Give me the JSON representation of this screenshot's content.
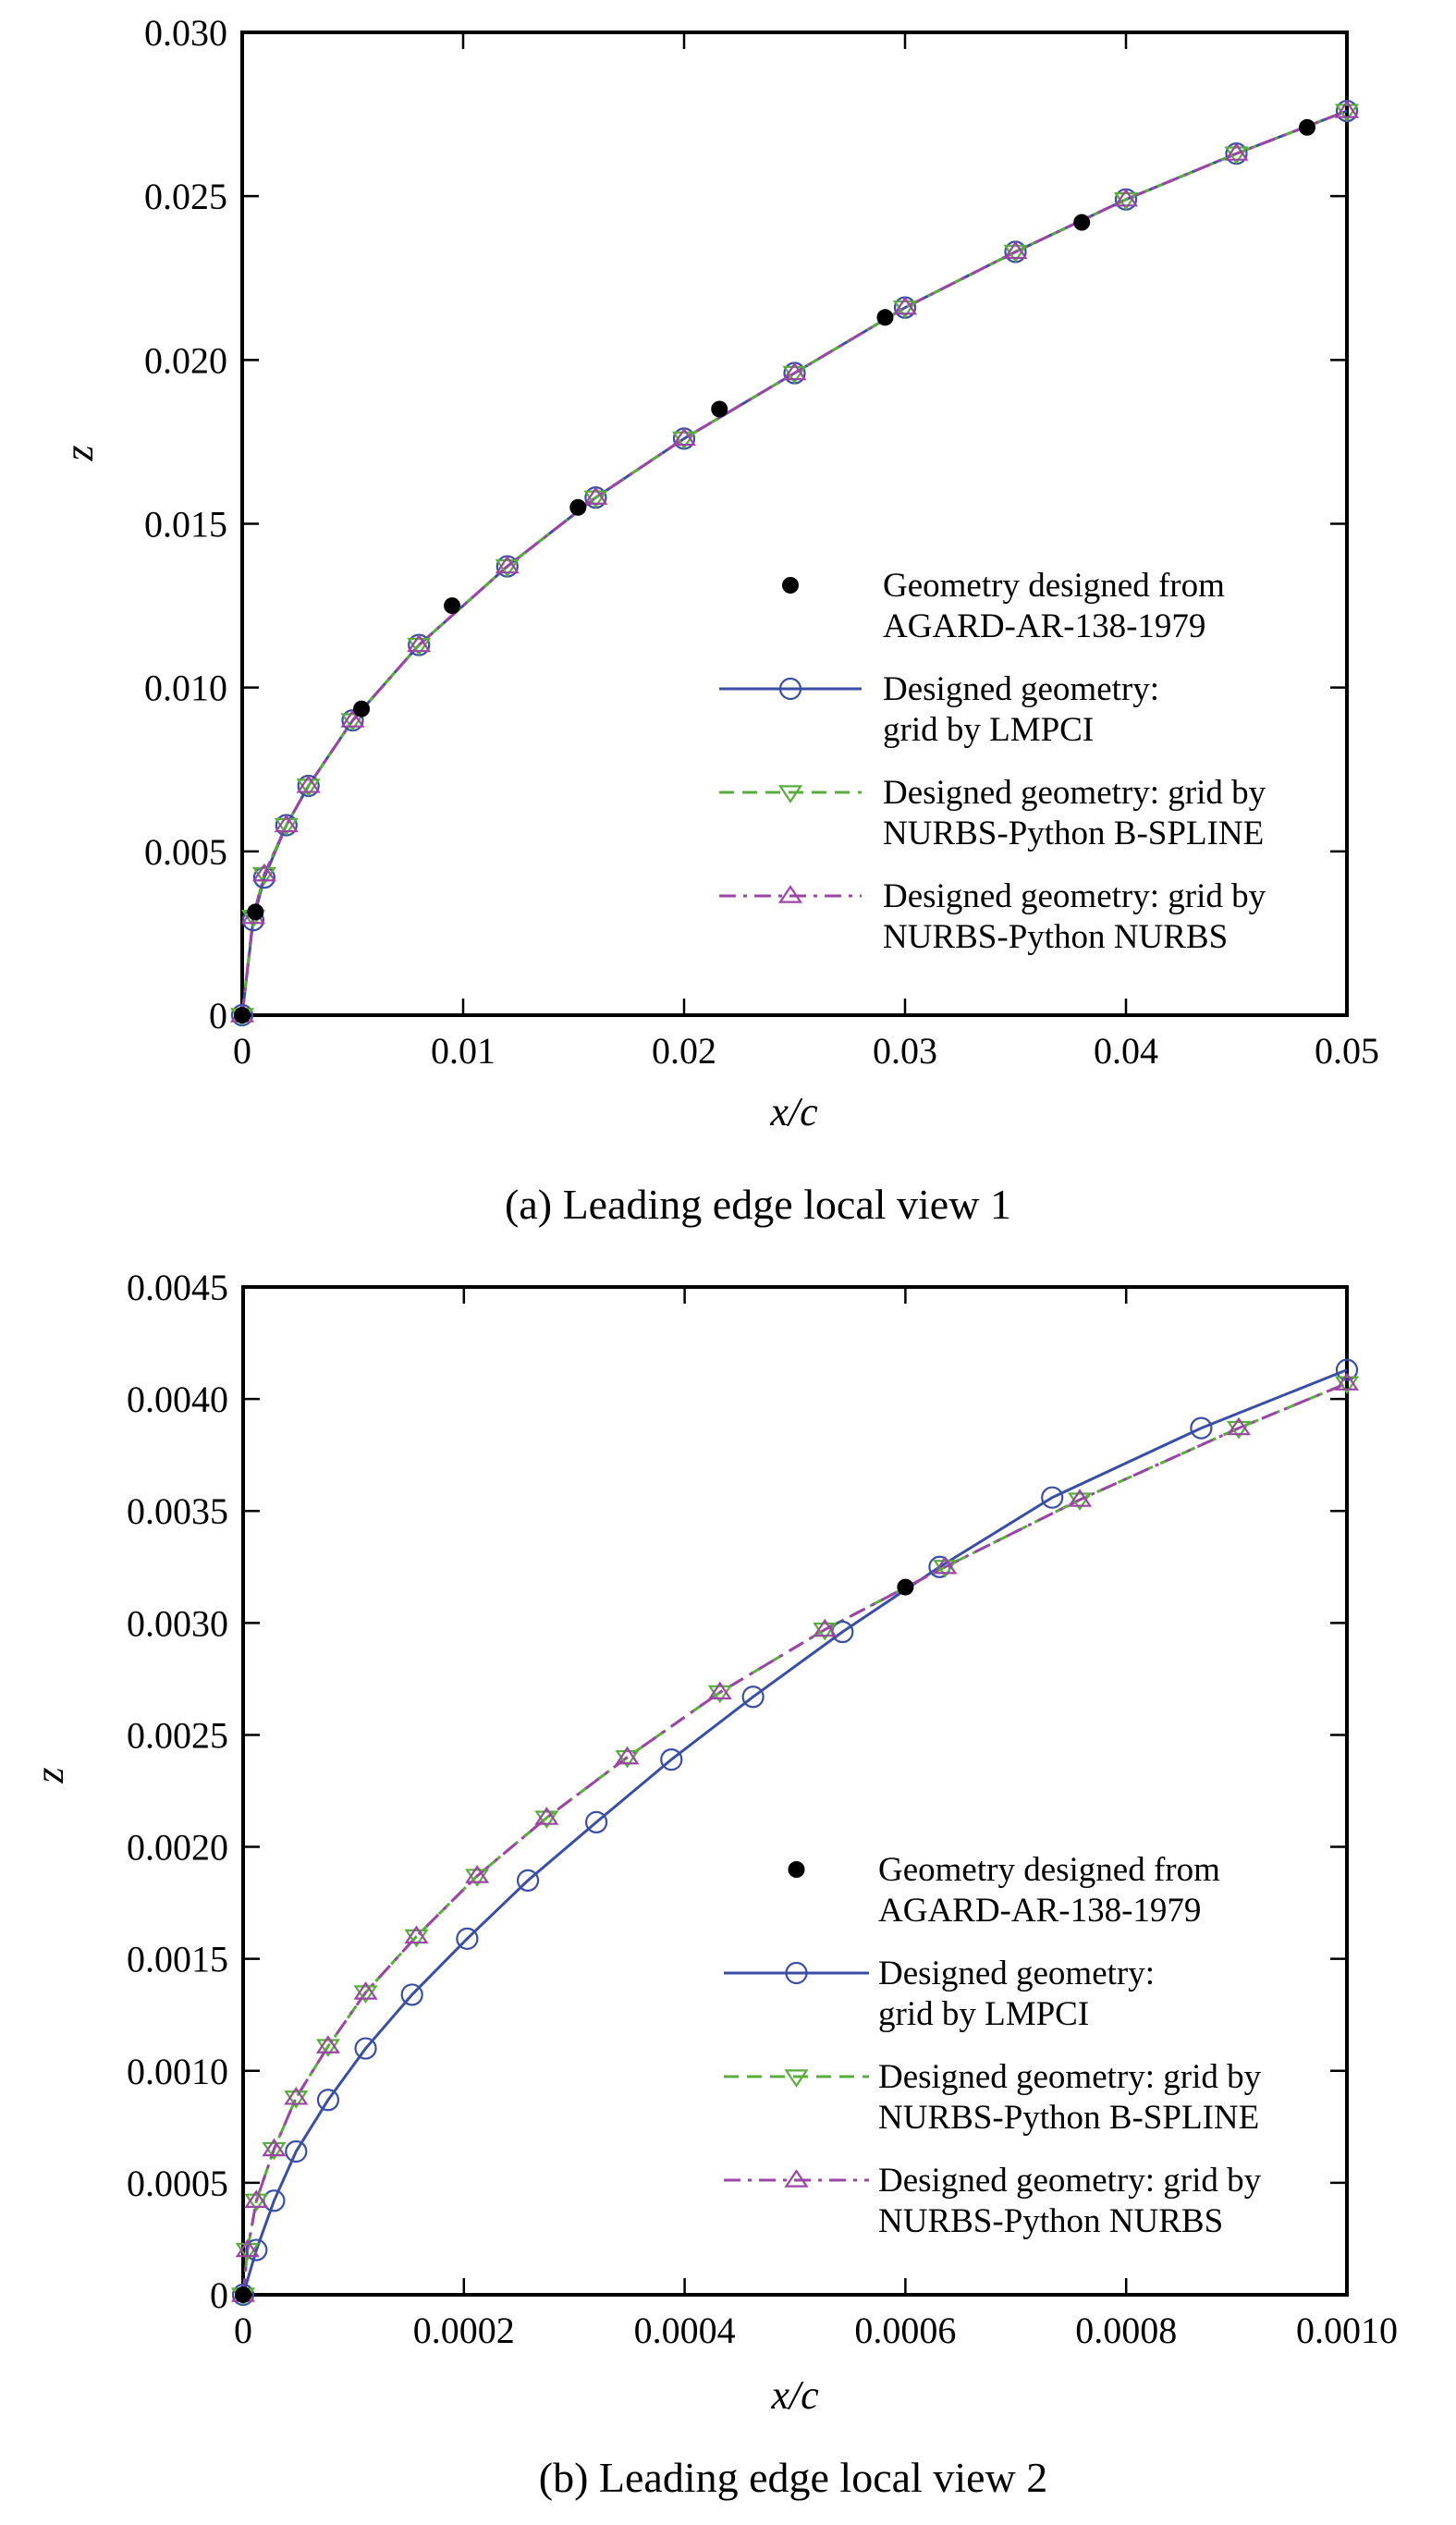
{
  "chart_data": [
    {
      "type": "line",
      "caption": "(a) Leading edge local view 1",
      "xlabel": "x/c",
      "ylabel": "z",
      "xlim": [
        0,
        0.05
      ],
      "ylim": [
        0,
        0.03
      ],
      "x_ticks": [
        0,
        0.01,
        0.02,
        0.03,
        0.04,
        0.05
      ],
      "x_tick_labels": [
        "0",
        "0.01",
        "0.02",
        "0.03",
        "0.04",
        "0.05"
      ],
      "y_ticks": [
        0,
        0.005,
        0.01,
        0.015,
        0.02,
        0.025,
        0.03
      ],
      "y_tick_labels": [
        "0",
        "0.005",
        "0.010",
        "0.015",
        "0.020",
        "0.025",
        "0.030"
      ],
      "grid": false,
      "legend_position": "bottom-right",
      "series": [
        {
          "name": "Geometry designed from AGARD-AR-138-1979",
          "legend_lines": [
            "Geometry designed from",
            "AGARD-AR-138-1979"
          ],
          "style": "markers",
          "marker": "filled-circle",
          "color": "#000000",
          "x": [
            0.0,
            0.0006,
            0.0054,
            0.0095,
            0.0152,
            0.0216,
            0.0291,
            0.038,
            0.0482
          ],
          "y": [
            0.0,
            0.00315,
            0.00935,
            0.0125,
            0.0155,
            0.0185,
            0.0213,
            0.0242,
            0.0271
          ]
        },
        {
          "name": "Designed geometry: grid by LMPCI",
          "legend_lines": [
            "Designed geometry:",
            "grid by LMPCI"
          ],
          "style": "solid",
          "marker": "open-circle",
          "color": "#3a4fa3",
          "x": [
            0.0,
            0.0005,
            0.001,
            0.002,
            0.003,
            0.005,
            0.008,
            0.012,
            0.016,
            0.02,
            0.025,
            0.03,
            0.035,
            0.04,
            0.045,
            0.05
          ],
          "y": [
            0.0,
            0.0029,
            0.0042,
            0.0058,
            0.007,
            0.009,
            0.0113,
            0.0137,
            0.0158,
            0.0176,
            0.0196,
            0.0216,
            0.0233,
            0.0249,
            0.0263,
            0.0276
          ]
        },
        {
          "name": "Designed geometry: grid by NURBS-Python B-SPLINE",
          "legend_lines": [
            "Designed geometry: grid by",
            "NURBS-Python B-SPLINE"
          ],
          "style": "dashed",
          "marker": "open-triangle-down",
          "color": "#58ad3c",
          "x": [
            0.0,
            0.0005,
            0.001,
            0.002,
            0.003,
            0.005,
            0.008,
            0.012,
            0.016,
            0.02,
            0.025,
            0.03,
            0.035,
            0.04,
            0.045,
            0.05
          ],
          "y": [
            0.0,
            0.003,
            0.0043,
            0.0058,
            0.007,
            0.009,
            0.0113,
            0.0137,
            0.0158,
            0.0176,
            0.0196,
            0.0216,
            0.0233,
            0.0249,
            0.0263,
            0.0276
          ]
        },
        {
          "name": "Designed geometry: grid by NURBS-Python NURBS",
          "legend_lines": [
            "Designed geometry: grid by",
            "NURBS-Python NURBS"
          ],
          "style": "dash-dot",
          "marker": "open-triangle-up",
          "color": "#9b45a6",
          "x": [
            0.0,
            0.0005,
            0.001,
            0.002,
            0.003,
            0.005,
            0.008,
            0.012,
            0.016,
            0.02,
            0.025,
            0.03,
            0.035,
            0.04,
            0.045,
            0.05
          ],
          "y": [
            0.0,
            0.003,
            0.0043,
            0.0058,
            0.007,
            0.009,
            0.0113,
            0.0137,
            0.0158,
            0.0176,
            0.0196,
            0.0216,
            0.0233,
            0.0249,
            0.0263,
            0.0276
          ]
        }
      ]
    },
    {
      "type": "line",
      "caption": "(b) Leading edge local view 2",
      "xlabel": "x/c",
      "ylabel": "z",
      "xlim": [
        0,
        0.001
      ],
      "ylim": [
        0,
        0.0045
      ],
      "x_ticks": [
        0,
        0.0002,
        0.0004,
        0.0006,
        0.0008,
        0.001
      ],
      "x_tick_labels": [
        "0",
        "0.0002",
        "0.0004",
        "0.0006",
        "0.0008",
        "0.0010"
      ],
      "y_ticks": [
        0,
        0.0005,
        0.001,
        0.0015,
        0.002,
        0.0025,
        0.003,
        0.0035,
        0.004,
        0.0045
      ],
      "y_tick_labels": [
        "0",
        "0.0005",
        "0.0010",
        "0.0015",
        "0.0020",
        "0.0025",
        "0.0030",
        "0.0035",
        "0.0040",
        "0.0045"
      ],
      "grid": false,
      "legend_position": "bottom-right",
      "series": [
        {
          "name": "Geometry designed from AGARD-AR-138-1979",
          "legend_lines": [
            "Geometry designed from",
            "AGARD-AR-138-1979"
          ],
          "style": "markers",
          "marker": "filled-circle",
          "color": "#000000",
          "x": [
            0.0,
            0.0006
          ],
          "y": [
            0.0,
            0.00316
          ]
        },
        {
          "name": "Designed geometry: grid by LMPCI",
          "legend_lines": [
            "Designed geometry:",
            "grid by LMPCI"
          ],
          "style": "solid",
          "marker": "open-circle",
          "color": "#3a4fa3",
          "x": [
            0.0,
            1.2e-05,
            2.8e-05,
            4.8e-05,
            7.7e-05,
            0.000111,
            0.000153,
            0.000203,
            0.000258,
            0.00032,
            0.000388,
            0.000462,
            0.000543,
            0.000631,
            0.000733,
            0.000868,
            0.001
          ],
          "y": [
            0.0,
            0.0002,
            0.00042,
            0.00064,
            0.00087,
            0.0011,
            0.00134,
            0.00159,
            0.00185,
            0.00211,
            0.00239,
            0.00267,
            0.00296,
            0.00325,
            0.00356,
            0.00387,
            0.00413
          ]
        },
        {
          "name": "Designed geometry: grid by NURBS-Python B-SPLINE",
          "legend_lines": [
            "Designed geometry: grid by",
            "NURBS-Python B-SPLINE"
          ],
          "style": "dashed",
          "marker": "open-triangle-down",
          "color": "#58ad3c",
          "x": [
            0.0,
            4e-06,
            1.2e-05,
            2.8e-05,
            4.8e-05,
            7.7e-05,
            0.000111,
            0.000157,
            0.000212,
            0.000275,
            0.000348,
            0.000432,
            0.000527,
            0.000636,
            0.000758,
            0.000902,
            0.001
          ],
          "y": [
            0.0,
            0.0002,
            0.00042,
            0.00065,
            0.00088,
            0.00111,
            0.00135,
            0.0016,
            0.00187,
            0.00213,
            0.0024,
            0.00269,
            0.00297,
            0.00325,
            0.00355,
            0.00387,
            0.00407
          ]
        },
        {
          "name": "Designed geometry: grid by NURBS-Python NURBS",
          "legend_lines": [
            "Designed geometry: grid by",
            "NURBS-Python NURBS"
          ],
          "style": "dash-dot",
          "marker": "open-triangle-up",
          "color": "#9b45a6",
          "x": [
            0.0,
            4e-06,
            1.2e-05,
            2.8e-05,
            4.8e-05,
            7.7e-05,
            0.000111,
            0.000157,
            0.000212,
            0.000275,
            0.000348,
            0.000432,
            0.000527,
            0.000636,
            0.000758,
            0.000902,
            0.001
          ],
          "y": [
            0.0,
            0.0002,
            0.00042,
            0.00065,
            0.00088,
            0.00111,
            0.00135,
            0.0016,
            0.00187,
            0.00213,
            0.0024,
            0.00269,
            0.00297,
            0.00325,
            0.00355,
            0.00387,
            0.00407
          ]
        }
      ]
    }
  ]
}
